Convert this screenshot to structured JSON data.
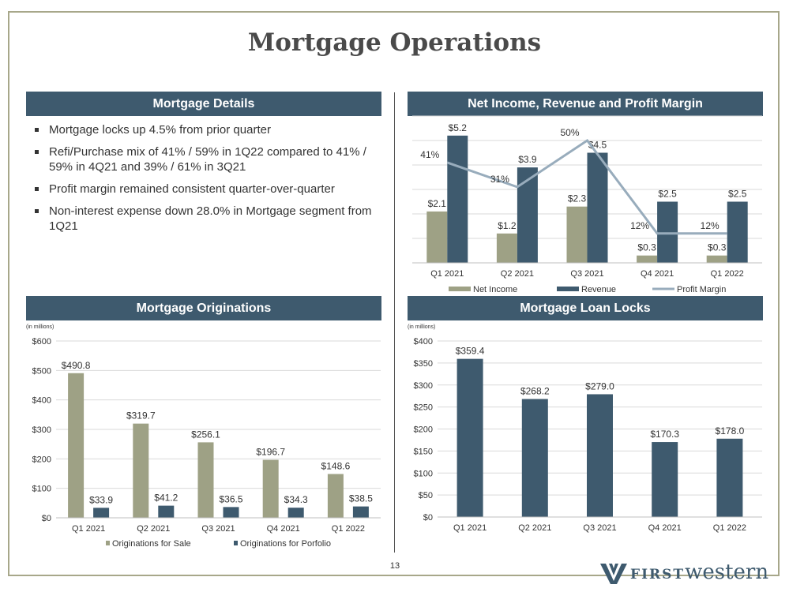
{
  "page_title": "Mortgage Operations",
  "page_number": "13",
  "logo": {
    "first": "FIRST",
    "western": "western",
    "icon": "fw-logo-icon",
    "color": "#3e5a6e"
  },
  "colors": {
    "header_bg": "#3e5a6e",
    "olive": "#9ea185",
    "navy": "#3e5a6e",
    "line": "#98acbc",
    "border": "#a7a78a"
  },
  "details": {
    "header": "Mortgage Details",
    "bullets": [
      "Mortgage locks up 4.5% from prior quarter",
      "Refi/Purchase mix of 41% / 59% in 1Q22 compared to 41% / 59% in 4Q21 and 39% / 61% in 3Q21",
      "Profit margin remained consistent quarter-over-quarter",
      "Non-interest expense down 28.0% in Mortgage segment from 1Q21"
    ]
  },
  "chart_data": [
    {
      "id": "income",
      "header": "Net Income, Revenue and Profit Margin",
      "type": "bar",
      "categories": [
        "Q1 2021",
        "Q2 2021",
        "Q3 2021",
        "Q4 2021",
        "Q1 2022"
      ],
      "series": [
        {
          "name": "Net Income",
          "values": [
            2.1,
            1.2,
            2.3,
            0.3,
            0.3
          ],
          "labels": [
            "$2.1",
            "$1.2",
            "$2.3",
            "$0.3",
            "$0.3"
          ],
          "color": "#9ea185"
        },
        {
          "name": "Revenue",
          "values": [
            5.2,
            3.9,
            4.5,
            2.5,
            2.5
          ],
          "labels": [
            "$5.2",
            "$3.9",
            "$4.5",
            "$2.5",
            "$2.5"
          ],
          "color": "#3e5a6e"
        }
      ],
      "line": {
        "name": "Profit Margin",
        "values": [
          41,
          31,
          50,
          12,
          12
        ],
        "labels": [
          "41%",
          "31%",
          "50%",
          "12%",
          "12%"
        ],
        "color": "#98acbc"
      },
      "ylim": [
        0,
        6
      ],
      "y2lim": [
        0,
        60
      ],
      "grid": true,
      "legend": "bottom"
    },
    {
      "id": "orig",
      "header": "Mortgage Originations",
      "unit_note": "(in millions)",
      "type": "bar",
      "categories": [
        "Q1 2021",
        "Q2 2021",
        "Q3 2021",
        "Q4 2021",
        "Q1 2022"
      ],
      "series": [
        {
          "name": "Originations for Sale",
          "values": [
            490.8,
            319.7,
            256.1,
            196.7,
            148.6
          ],
          "labels": [
            "$490.8",
            "$319.7",
            "$256.1",
            "$196.7",
            "$148.6"
          ],
          "color": "#9ea185"
        },
        {
          "name": "Originations for Porfolio",
          "values": [
            33.9,
            41.2,
            36.5,
            34.3,
            38.5
          ],
          "labels": [
            "$33.9",
            "$41.2",
            "$36.5",
            "$34.3",
            "$38.5"
          ],
          "color": "#3e5a6e"
        }
      ],
      "ylim": [
        0,
        600
      ],
      "yticks": [
        0,
        100,
        200,
        300,
        400,
        500,
        600
      ],
      "ytick_labels": [
        "$0",
        "$100",
        "$200",
        "$300",
        "$400",
        "$500",
        "$600"
      ],
      "grid": true,
      "legend": "bottom"
    },
    {
      "id": "locks",
      "header": "Mortgage Loan Locks",
      "unit_note": "(in millions)",
      "type": "bar",
      "categories": [
        "Q1 2021",
        "Q2 2021",
        "Q3 2021",
        "Q4 2021",
        "Q1 2022"
      ],
      "series": [
        {
          "values": [
            359.4,
            268.2,
            279.0,
            170.3,
            178.0
          ],
          "labels": [
            "$359.4",
            "$268.2",
            "$279.0",
            "$170.3",
            "$178.0"
          ],
          "color": "#3e5a6e"
        }
      ],
      "ylim": [
        0,
        400
      ],
      "yticks": [
        0,
        50,
        100,
        150,
        200,
        250,
        300,
        350,
        400
      ],
      "ytick_labels": [
        "$0",
        "$50",
        "$100",
        "$150",
        "$200",
        "$250",
        "$300",
        "$350",
        "$400"
      ],
      "grid": true
    }
  ]
}
